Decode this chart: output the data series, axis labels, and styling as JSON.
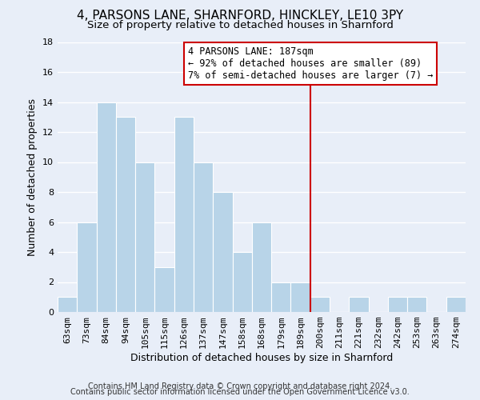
{
  "title": "4, PARSONS LANE, SHARNFORD, HINCKLEY, LE10 3PY",
  "subtitle": "Size of property relative to detached houses in Sharnford",
  "xlabel": "Distribution of detached houses by size in Sharnford",
  "ylabel": "Number of detached properties",
  "footer_line1": "Contains HM Land Registry data © Crown copyright and database right 2024.",
  "footer_line2": "Contains public sector information licensed under the Open Government Licence v3.0.",
  "bin_labels": [
    "63sqm",
    "73sqm",
    "84sqm",
    "94sqm",
    "105sqm",
    "115sqm",
    "126sqm",
    "137sqm",
    "147sqm",
    "158sqm",
    "168sqm",
    "179sqm",
    "189sqm",
    "200sqm",
    "211sqm",
    "221sqm",
    "232sqm",
    "242sqm",
    "253sqm",
    "263sqm",
    "274sqm"
  ],
  "bar_heights": [
    1,
    6,
    14,
    13,
    10,
    3,
    13,
    10,
    8,
    4,
    6,
    2,
    2,
    1,
    0,
    1,
    0,
    1,
    1,
    0,
    1
  ],
  "bar_color": "#b8d4e8",
  "bar_edge_color": "#ffffff",
  "vline_color": "#cc0000",
  "vline_index": 12,
  "annotation_line1": "4 PARSONS LANE: 187sqm",
  "annotation_line2": "← 92% of detached houses are smaller (89)",
  "annotation_line3": "7% of semi-detached houses are larger (7) →",
  "ylim": [
    0,
    18
  ],
  "yticks": [
    0,
    2,
    4,
    6,
    8,
    10,
    12,
    14,
    16,
    18
  ],
  "background_color": "#e8eef8",
  "plot_bg_color": "#e8eef8",
  "grid_color": "#ffffff",
  "title_fontsize": 11,
  "subtitle_fontsize": 9.5,
  "axis_label_fontsize": 9,
  "tick_fontsize": 8,
  "footer_fontsize": 7
}
